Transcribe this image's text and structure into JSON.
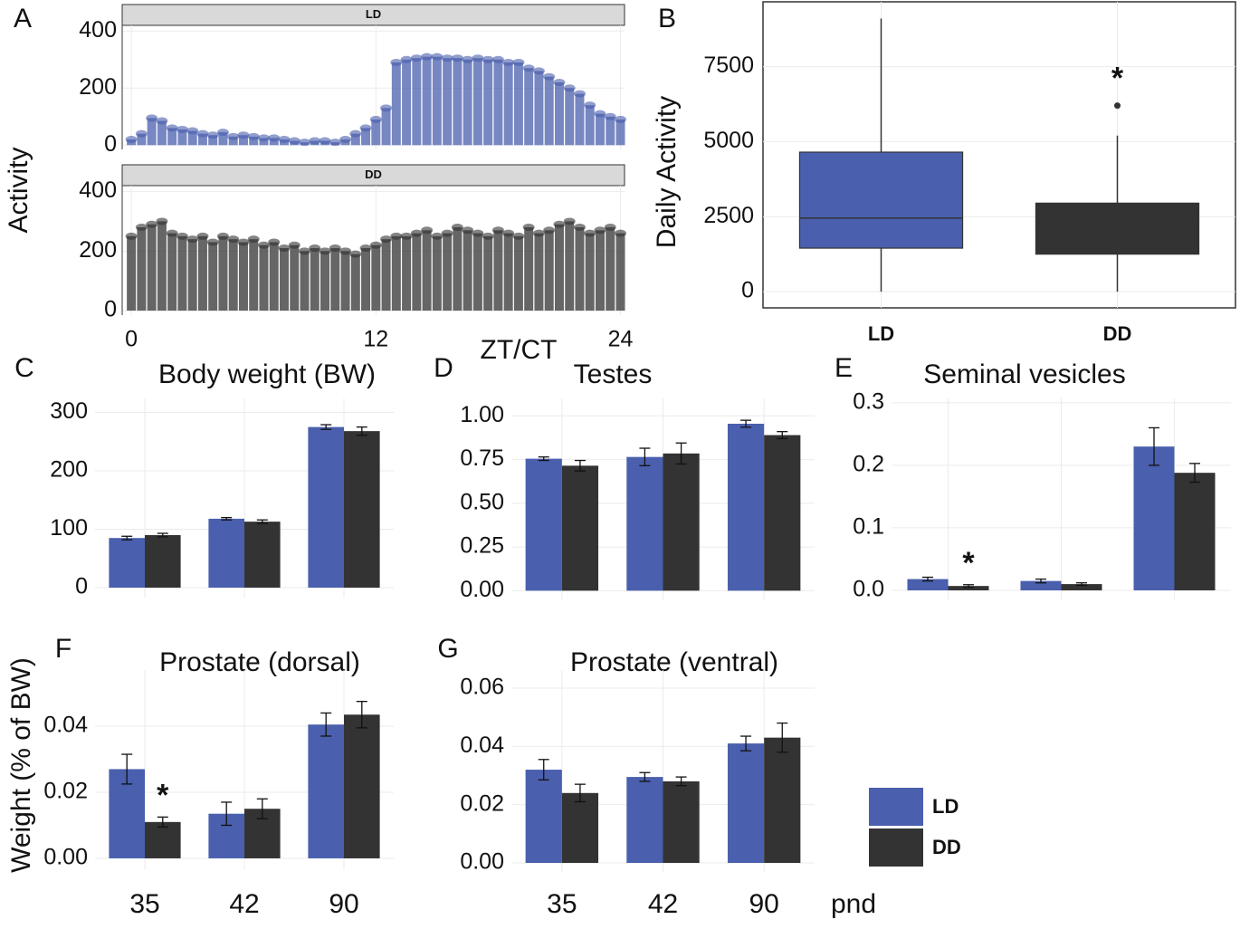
{
  "chart_data": [
    {
      "type": "scatter",
      "panel": "A",
      "x_label": "ZT/CT",
      "y_label": "Activity",
      "xlim": [
        -0.45,
        24.2
      ],
      "xticks": [
        0,
        12,
        24
      ],
      "ylim": [
        -15,
        420
      ],
      "yticks": [
        0,
        200,
        400
      ],
      "x": [
        0,
        0.5,
        1,
        1.5,
        2,
        2.5,
        3,
        3.5,
        4,
        4.5,
        5,
        5.5,
        6,
        6.5,
        7,
        7.5,
        8,
        8.5,
        9,
        9.5,
        10,
        10.5,
        11,
        11.5,
        12,
        12.5,
        13,
        13.5,
        14,
        14.5,
        15,
        15.5,
        16,
        16.5,
        17,
        17.5,
        18,
        18.5,
        19,
        19.5,
        20,
        20.5,
        21,
        21.5,
        22,
        22.5,
        23,
        23.5,
        24
      ],
      "facets": [
        {
          "name": "LD",
          "color": "#4a5fad",
          "values": [
            20,
            40,
            95,
            85,
            60,
            55,
            50,
            40,
            35,
            45,
            30,
            35,
            30,
            25,
            25,
            20,
            15,
            10,
            15,
            15,
            10,
            20,
            40,
            60,
            90,
            130,
            290,
            300,
            305,
            310,
            310,
            305,
            305,
            300,
            305,
            300,
            300,
            290,
            290,
            270,
            260,
            240,
            220,
            200,
            180,
            140,
            110,
            100,
            90
          ]
        },
        {
          "name": "DD",
          "color": "#333333",
          "values": [
            250,
            280,
            290,
            300,
            260,
            250,
            240,
            250,
            230,
            250,
            240,
            230,
            240,
            220,
            230,
            210,
            220,
            200,
            210,
            200,
            210,
            200,
            190,
            210,
            220,
            240,
            250,
            250,
            260,
            270,
            250,
            260,
            280,
            270,
            260,
            250,
            270,
            260,
            250,
            280,
            260,
            270,
            290,
            300,
            280,
            260,
            270,
            280,
            260
          ]
        }
      ]
    },
    {
      "type": "box",
      "panel": "B",
      "y_label": "Daily Activity",
      "ylim": [
        -540,
        9660
      ],
      "yticks": [
        0,
        2500,
        5000,
        7500
      ],
      "series": [
        {
          "name": "LD",
          "color": "#4a5fad",
          "min": 0,
          "q1": 1450,
          "median": 2450,
          "q3": 4650,
          "max": 9100
        },
        {
          "name": "DD",
          "color": "#333333",
          "min": 0,
          "q1": 1250,
          "median": 1950,
          "q3": 2950,
          "max": 5200,
          "outliers": [
            6200
          ]
        }
      ],
      "annotations": [
        {
          "text": "*",
          "series": "DD"
        }
      ]
    },
    {
      "type": "bar",
      "panel": "C",
      "title": "Body weight (BW)",
      "categories": [
        null,
        null,
        null
      ],
      "ylim": [
        -17,
        324
      ],
      "yticks": [
        0,
        100,
        200,
        300
      ],
      "series": [
        {
          "name": "LD",
          "color": "#4a5fad",
          "values": [
            85,
            118,
            275
          ],
          "errors": [
            3,
            2,
            4
          ]
        },
        {
          "name": "DD",
          "color": "#333333",
          "values": [
            90,
            113,
            268
          ],
          "errors": [
            3,
            3,
            7
          ]
        }
      ]
    },
    {
      "type": "bar",
      "panel": "D",
      "title": "Testes",
      "categories": [
        null,
        null,
        null
      ],
      "ylim": [
        -0.05,
        1.1
      ],
      "yticks": [
        {
          "value": 0,
          "label": "0.00"
        },
        0.25,
        {
          "value": 0.5,
          "label": "0.50"
        },
        0.75,
        {
          "value": 1,
          "label": "1.00"
        }
      ],
      "series": [
        {
          "name": "LD",
          "color": "#4a5fad",
          "values": [
            0.755,
            0.765,
            0.955
          ],
          "errors": [
            0.01,
            0.05,
            0.02
          ]
        },
        {
          "name": "DD",
          "color": "#333333",
          "values": [
            0.715,
            0.785,
            0.89
          ],
          "errors": [
            0.03,
            0.06,
            0.02
          ]
        }
      ]
    },
    {
      "type": "bar",
      "panel": "E",
      "title": "Seminal vesicles",
      "categories": [
        null,
        null,
        null
      ],
      "ylim": [
        -0.0145,
        0.307
      ],
      "yticks": [
        {
          "value": 0,
          "label": "0.0"
        },
        0.1,
        0.2,
        0.3
      ],
      "series": [
        {
          "name": "LD",
          "color": "#4a5fad",
          "values": [
            0.018,
            0.015,
            0.23
          ],
          "errors": [
            0.003,
            0.003,
            0.03
          ]
        },
        {
          "name": "DD",
          "color": "#333333",
          "values": [
            0.007,
            0.01,
            0.188
          ],
          "errors": [
            0.002,
            0.002,
            0.015
          ]
        }
      ],
      "annotations": [
        {
          "text": "*",
          "series": "DD",
          "index": 0
        }
      ]
    },
    {
      "type": "bar",
      "panel": "F",
      "title": "Prostate (dorsal)",
      "categories": [
        "35",
        "42",
        "90"
      ],
      "ylim": [
        -0.0033,
        0.057
      ],
      "yticks": [
        {
          "value": 0,
          "label": "0.00"
        },
        0.02,
        0.04
      ],
      "series": [
        {
          "name": "LD",
          "color": "#4a5fad",
          "values": [
            0.027,
            0.0135,
            0.0405
          ],
          "errors": [
            0.0045,
            0.0035,
            0.0035
          ]
        },
        {
          "name": "DD",
          "color": "#333333",
          "values": [
            0.011,
            0.015,
            0.0435
          ],
          "errors": [
            0.0015,
            0.003,
            0.004
          ]
        }
      ],
      "annotations": [
        {
          "text": "*",
          "series": "DD",
          "index": 0
        }
      ]
    },
    {
      "type": "bar",
      "panel": "G",
      "title": "Prostate (ventral)",
      "categories": [
        "35",
        "42",
        "90"
      ],
      "ylim": [
        -0.0031,
        0.0662
      ],
      "yticks": [
        {
          "value": 0,
          "label": "0.00"
        },
        0.02,
        0.04,
        0.06
      ],
      "series": [
        {
          "name": "LD",
          "color": "#4a5fad",
          "values": [
            0.032,
            0.0295,
            0.041
          ],
          "errors": [
            0.0035,
            0.0015,
            0.0025
          ]
        },
        {
          "name": "DD",
          "color": "#333333",
          "values": [
            0.024,
            0.028,
            0.043
          ],
          "errors": [
            0.003,
            0.0015,
            0.005
          ]
        }
      ]
    }
  ],
  "shared": {
    "y_label": "Weight (% of BW)",
    "x_label": "pnd",
    "legend": [
      {
        "name": "LD",
        "color": "#4a5fad"
      },
      {
        "name": "DD",
        "color": "#333333"
      }
    ]
  }
}
